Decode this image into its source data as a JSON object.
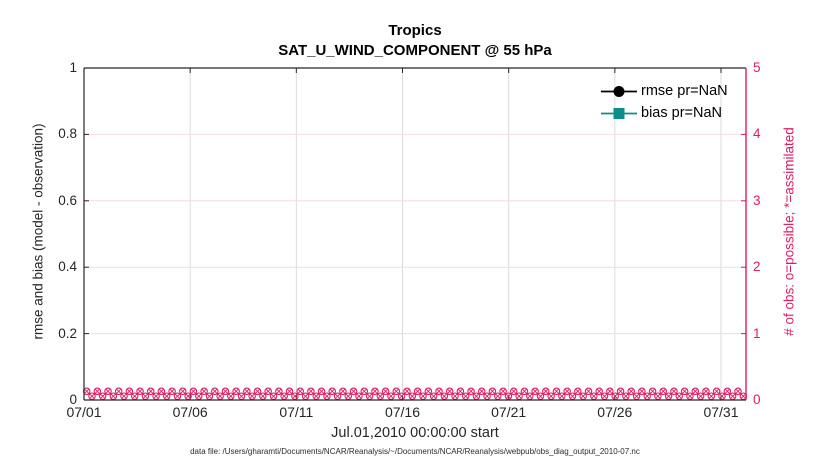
{
  "title": {
    "line1": "Tropics",
    "line2": "SAT_U_WIND_COMPONENT @ 55 hPa"
  },
  "axes": {
    "left": {
      "label": "rmse and bias (model - observation)",
      "ticks": [
        "1",
        "0.8",
        "0.6",
        "0.4",
        "0.2",
        "0"
      ],
      "color": "#262626"
    },
    "right": {
      "label": "# of obs: o=possible; *=assimilated",
      "ticks": [
        "5",
        "4",
        "3",
        "2",
        "1",
        "0"
      ],
      "color": "#de1b63"
    },
    "x": {
      "ticks": [
        "07/01",
        "07/06",
        "07/11",
        "07/16",
        "07/21",
        "07/26",
        "07/31"
      ],
      "label": "Jul.01,2010 00:00:00 start"
    }
  },
  "legend": [
    {
      "label": "rmse pr=NaN",
      "marker": "circle",
      "color": "#000000"
    },
    {
      "label": "bias pr=NaN",
      "marker": "square",
      "color": "#0e8c8c"
    }
  ],
  "footer": "data file: /Users/gharamti/Documents/NCAR/Reanalysis/~/Documents/NCAR/Reanalysis/webpub/obs_diag_output_2010-07.nc",
  "colors": {
    "accent_pink": "#de1b63",
    "grid_pink": "#f7d9e6",
    "grid_gray": "#dbdbdb",
    "axis_dark": "#262626",
    "teal": "#0e8c8c"
  },
  "chart_data": {
    "type": "line",
    "title": "Tropics",
    "subtitle": "SAT_U_WIND_COMPONENT @ 55 hPa",
    "xlabel": "Jul.01,2010 00:00:00 start",
    "ylabel_left": "rmse and bias (model - observation)",
    "ylabel_right": "# of obs: o=possible; *=assimilated",
    "ylim_left": [
      0,
      1
    ],
    "ylim_right": [
      0,
      5
    ],
    "left_y_ticks": [
      0,
      0.2,
      0.4,
      0.6,
      0.8,
      1
    ],
    "right_y_ticks": [
      0,
      1,
      2,
      3,
      4,
      5
    ],
    "x_tick_labels": [
      "07/01",
      "07/06",
      "07/11",
      "07/16",
      "07/21",
      "07/26",
      "07/31"
    ],
    "x_span_days": [
      "2010-07-01",
      "2010-08-01"
    ],
    "grid": true,
    "legend_position": "top-right-inside",
    "series": [
      {
        "name": "rmse pr=NaN",
        "axis": "left",
        "marker": "circle",
        "color": "#000000",
        "values": "NaN - no curve plotted"
      },
      {
        "name": "bias pr=NaN",
        "axis": "left",
        "marker": "square",
        "color": "#0e8c8c",
        "values": "NaN - no curve plotted"
      },
      {
        "name": "# of obs possible (o)",
        "axis": "right",
        "marker": "o",
        "color": "#de1b63",
        "n_bins": 124,
        "constant_value": 0
      },
      {
        "name": "# of obs assimilated (*)",
        "axis": "right",
        "marker": "x",
        "color": "#de1b63",
        "n_bins": 124,
        "constant_value": 0
      }
    ]
  }
}
